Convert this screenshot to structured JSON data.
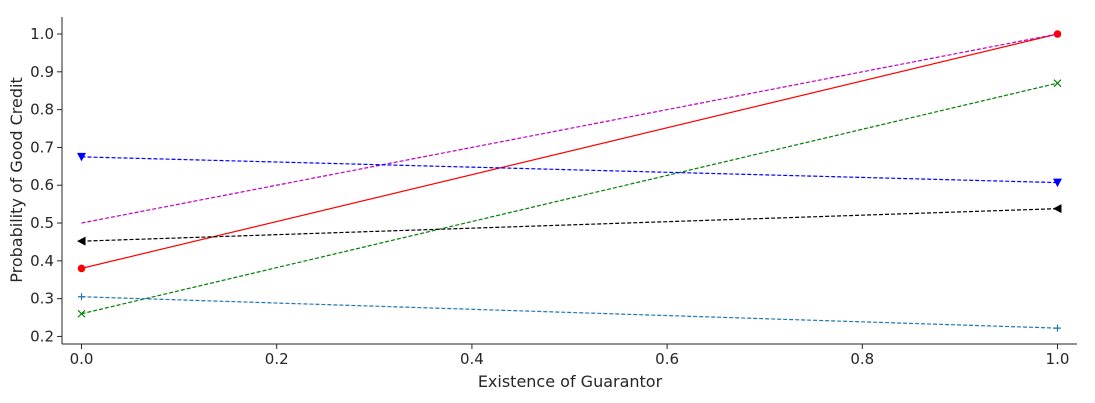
{
  "chart_data": {
    "type": "line",
    "xlabel": "Existence of Guarantor",
    "ylabel": "Probability of Good Credit",
    "xlim": [
      -0.02,
      1.02
    ],
    "ylim": [
      0.18,
      1.045
    ],
    "xticks": [
      "0.0",
      "0.2",
      "0.4",
      "0.6",
      "0.8",
      "1.0"
    ],
    "yticks": [
      "0.2",
      "0.3",
      "0.4",
      "0.5",
      "0.6",
      "0.7",
      "0.8",
      "0.9",
      "1.0"
    ],
    "grid": false,
    "series": [
      {
        "x": [
          0,
          1
        ],
        "values": [
          0.38,
          1.0
        ],
        "color": "#ff0000",
        "dash": "solid",
        "marker": "circle"
      },
      {
        "x": [
          0,
          1
        ],
        "values": [
          0.5,
          1.0
        ],
        "color": "#bf00bf",
        "dash": "dashed",
        "marker": "none"
      },
      {
        "x": [
          0,
          1
        ],
        "values": [
          0.26,
          0.87
        ],
        "color": "#008000",
        "dash": "dashed",
        "marker": "x"
      },
      {
        "x": [
          0,
          1
        ],
        "values": [
          0.675,
          0.607
        ],
        "color": "#0000ff",
        "dash": "dashed",
        "marker": "triangle-down"
      },
      {
        "x": [
          0,
          1
        ],
        "values": [
          0.452,
          0.538
        ],
        "color": "#000000",
        "dash": "dashed",
        "marker": "triangle-left"
      },
      {
        "x": [
          0,
          1
        ],
        "values": [
          0.305,
          0.222
        ],
        "color": "#1f77b4",
        "dash": "dashed",
        "marker": "plus"
      }
    ]
  }
}
